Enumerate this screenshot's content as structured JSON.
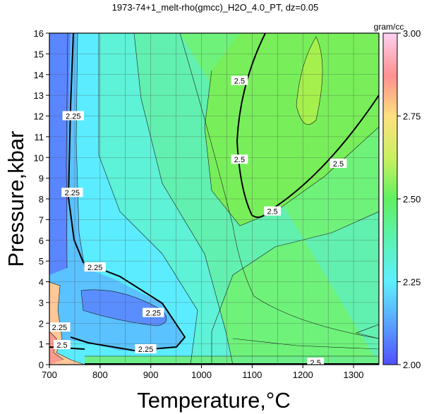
{
  "chart_data": {
    "type": "heatmap",
    "title": "1973-74+1_melt-rho(gmcc)_H2O_4.0_PT, dz=0.05",
    "xlabel": "Temperature,°C",
    "ylabel": "Pressure,kbar",
    "xlim": [
      700,
      1350
    ],
    "ylim": [
      0,
      16
    ],
    "x_ticks": [
      "700",
      "800",
      "900",
      "1000",
      "1100",
      "1200",
      "1300"
    ],
    "y_ticks": [
      "0",
      "1",
      "2",
      "3",
      "4",
      "5",
      "6",
      "7",
      "8",
      "9",
      "10",
      "11",
      "12",
      "13",
      "14",
      "15",
      "16"
    ],
    "grid": true,
    "colorbar": {
      "unit": "gram/cc",
      "range": [
        2.0,
        3.0
      ],
      "ticks": [
        "2.00",
        "2.25",
        "2.50",
        "2.75",
        "3.00"
      ],
      "placement": "right"
    },
    "contour_labels": [
      {
        "text": "2.25",
        "x": 747,
        "y": 12.0
      },
      {
        "text": "2.25",
        "x": 745,
        "y": 8.3
      },
      {
        "text": "2.25",
        "x": 790,
        "y": 4.7
      },
      {
        "text": "2.25",
        "x": 905,
        "y": 2.5
      },
      {
        "text": "2.25",
        "x": 720,
        "y": 1.8
      },
      {
        "text": "2.25",
        "x": 890,
        "y": 0.75
      },
      {
        "text": "2.5",
        "x": 725,
        "y": 0.95
      },
      {
        "text": "2.5",
        "x": 1075,
        "y": 13.7
      },
      {
        "text": "2.5",
        "x": 1075,
        "y": 9.9
      },
      {
        "text": "2.5",
        "x": 1270,
        "y": 9.7
      },
      {
        "text": "2.5",
        "x": 1140,
        "y": 7.4
      },
      {
        "text": "2.5",
        "x": 1225,
        "y": 0.1
      }
    ]
  }
}
